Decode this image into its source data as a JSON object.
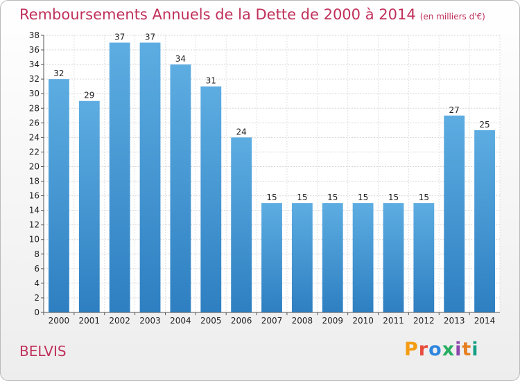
{
  "header": {
    "title": "Remboursements Annuels de la Dette de 2000 à 2014",
    "subtitle": "(en milliers d'€)"
  },
  "footer": {
    "town": "BELVIS",
    "logo": "Proxiti",
    "logo_colors": [
      "#f39c12",
      "#e74c3c",
      "#2e86de",
      "#27ae60",
      "#8e44ad",
      "#e67e22",
      "#16a085"
    ]
  },
  "chart_data": {
    "type": "bar",
    "title": "Remboursements Annuels de la Dette de 2000 à 2014",
    "subtitle": "(en milliers d'€)",
    "categories": [
      "2000",
      "2001",
      "2002",
      "2003",
      "2004",
      "2005",
      "2006",
      "2007",
      "2008",
      "2009",
      "2010",
      "2011",
      "2012",
      "2013",
      "2014"
    ],
    "values": [
      32,
      29,
      37,
      37,
      34,
      31,
      24,
      15,
      15,
      15,
      15,
      15,
      15,
      27,
      25
    ],
    "ylim": [
      0,
      38
    ],
    "yticks": [
      0,
      2,
      4,
      6,
      8,
      10,
      12,
      14,
      16,
      18,
      20,
      22,
      24,
      26,
      28,
      30,
      32,
      34,
      36,
      38
    ],
    "grid": true,
    "bar_color_top": "#5dade2",
    "bar_color_bottom": "#2e7fc1"
  }
}
